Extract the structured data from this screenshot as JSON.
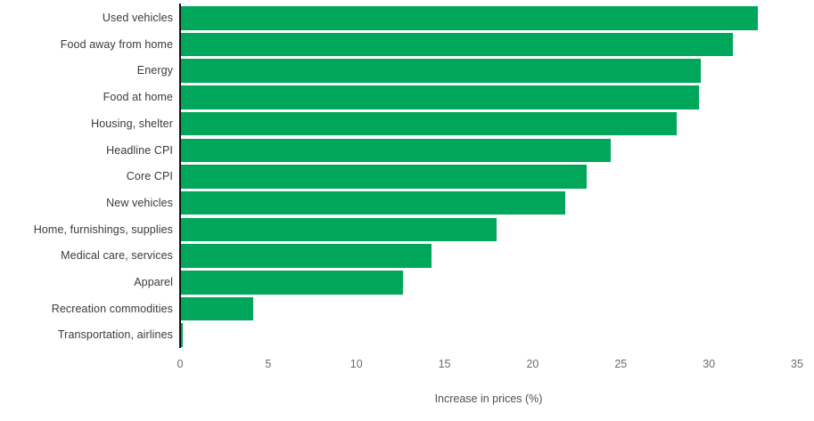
{
  "chart_data": {
    "type": "bar",
    "orientation": "horizontal",
    "title": "",
    "xlabel": "Increase in prices (%)",
    "ylabel": "",
    "xlim": [
      0,
      35
    ],
    "xticks": [
      0,
      5,
      10,
      15,
      20,
      25,
      30,
      35
    ],
    "grid": false,
    "legend": null,
    "categories": [
      "Used vehicles",
      "Food away from home",
      "Energy",
      "Food at home",
      "Housing, shelter",
      "Headline CPI",
      "Core CPI",
      "New vehicles",
      "Home, furnishings, supplies",
      "Medical care, services",
      "Apparel",
      "Recreation commodities",
      "Transportation, airlines"
    ],
    "values": [
      32.7,
      31.3,
      29.5,
      29.4,
      28.1,
      24.4,
      23.0,
      21.8,
      17.9,
      14.2,
      12.6,
      4.1,
      0.1
    ]
  },
  "colors": {
    "bar": "#00A65A",
    "axis_line": "#111111",
    "category_label": "#3a3a3a",
    "tick_label": "#6b6b6b",
    "axis_title": "#4f4f4f",
    "background": "#ffffff"
  }
}
